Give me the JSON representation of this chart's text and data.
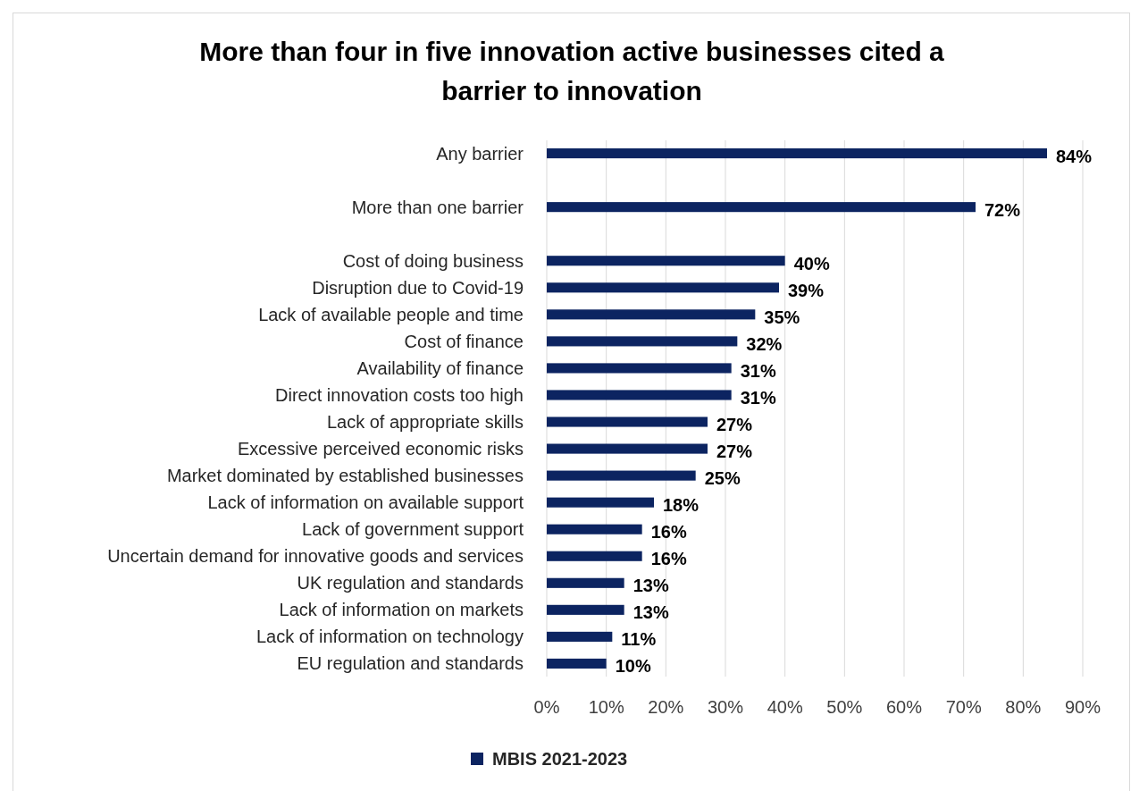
{
  "chart_data": {
    "type": "bar",
    "orientation": "horizontal",
    "title": "More than four in five innovation active businesses cited a barrier to innovation",
    "categories": [
      "Any barrier",
      null,
      "More than one barrier",
      null,
      "Cost of doing business",
      "Disruption due to Covid-19",
      "Lack of available people and time",
      "Cost of finance",
      "Availability of finance",
      "Direct innovation costs too high",
      "Lack of appropriate skills",
      "Excessive perceived economic risks",
      "Market dominated by established businesses",
      "Lack of information on available support",
      "Lack of government support",
      "Uncertain demand for innovative goods and services",
      "UK regulation and standards",
      "Lack of information on markets",
      "Lack of information on technology",
      "EU regulation and standards"
    ],
    "series": [
      {
        "name": "MBIS 2021-2023",
        "color": "#0c2461",
        "values": [
          84,
          null,
          72,
          null,
          40,
          39,
          35,
          32,
          31,
          31,
          27,
          27,
          25,
          18,
          16,
          16,
          13,
          13,
          11,
          10
        ],
        "value_labels": [
          "84%",
          null,
          "72%",
          null,
          "40%",
          "39%",
          "35%",
          "32%",
          "31%",
          "31%",
          "27%",
          "27%",
          "25%",
          "18%",
          "16%",
          "16%",
          "13%",
          "13%",
          "11%",
          "10%"
        ]
      }
    ],
    "xlim": [
      0,
      90
    ],
    "xticks": [
      {
        "value": 0,
        "label": "0%"
      },
      {
        "value": 10,
        "label": "10%"
      },
      {
        "value": 20,
        "label": "20%"
      },
      {
        "value": 30,
        "label": "30%"
      },
      {
        "value": 40,
        "label": "40%"
      },
      {
        "value": 50,
        "label": "50%"
      },
      {
        "value": 60,
        "label": "60%"
      },
      {
        "value": 70,
        "label": "70%"
      },
      {
        "value": 80,
        "label": "80%"
      },
      {
        "value": 90,
        "label": "90%"
      }
    ],
    "grid": "x",
    "legend": "bottom"
  }
}
